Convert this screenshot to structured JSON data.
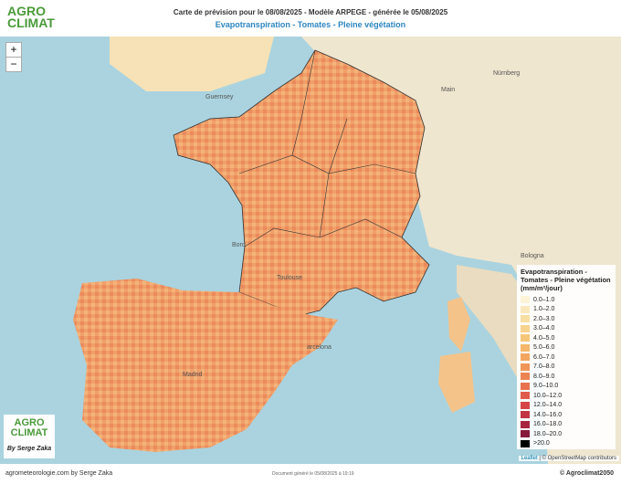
{
  "header": {
    "logo": "AGRO CLIMAT",
    "title": "Carte de prévision pour le 08/08/2025 - Modèle ARPEGE - générée le 05/08/2025",
    "subtitle": "Evapotranspiration - Tomates - Pleine végétation"
  },
  "map": {
    "zoom_in": "+",
    "zoom_out": "−",
    "places": [
      {
        "label": "Guernsey"
      },
      {
        "label": "Bord"
      },
      {
        "label": "Toulouse"
      },
      {
        "label": "arcelona"
      },
      {
        "label": "Madrid"
      },
      {
        "label": "Nürnberg"
      },
      {
        "label": "Main"
      },
      {
        "label": "Bologna"
      }
    ],
    "badge": {
      "logo": "AGRO CLIMAT",
      "author": "By Serge Zaka"
    },
    "attribution": {
      "leaflet": "Leaflet",
      "osm": "| © OpenStreetMap contributors"
    }
  },
  "legend": {
    "title": "Evapotranspiration - Tomates - Pleine végétation",
    "unit": "(mm/m²/jour)",
    "items": [
      {
        "label": "0.0–1.0",
        "color": "#fdf3d6"
      },
      {
        "label": "1.0–2.0",
        "color": "#fbe9bd"
      },
      {
        "label": "2.0–3.0",
        "color": "#f9dfa4"
      },
      {
        "label": "3.0–4.0",
        "color": "#f8d38e"
      },
      {
        "label": "4.0–5.0",
        "color": "#f6c67a"
      },
      {
        "label": "5.0–6.0",
        "color": "#f4b76b"
      },
      {
        "label": "6.0–7.0",
        "color": "#f2a660"
      },
      {
        "label": "7.0–8.0",
        "color": "#ef9558"
      },
      {
        "label": "8.0–9.0",
        "color": "#ec8353"
      },
      {
        "label": "9.0–10.0",
        "color": "#e8714f"
      },
      {
        "label": "10.0–12.0",
        "color": "#e05b4b"
      },
      {
        "label": "12.0–14.0",
        "color": "#d54548"
      },
      {
        "label": "14.0–16.0",
        "color": "#c23444"
      },
      {
        "label": "16.0–18.0",
        "color": "#a82640"
      },
      {
        "label": "18.0–20.0",
        "color": "#871a3a"
      },
      {
        "label": ">20.0",
        "color": "#000000"
      }
    ]
  },
  "footer": {
    "left": "agrometeorologie.com by Serge Zaka",
    "center": "Document généré le 05/08/2025 à 19:19",
    "right": "© Agroclimat2050"
  }
}
